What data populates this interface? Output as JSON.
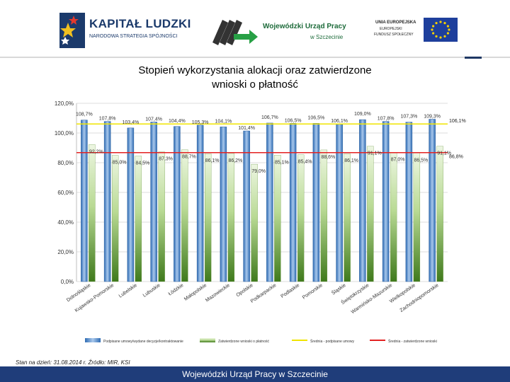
{
  "header": {
    "logos": [
      {
        "title": "KAPITAŁ LUDZKI",
        "subtitle": "NARODOWA STRATEGIA SPÓJNOŚCI"
      },
      {
        "name": "Wojewódzki Urząd Pracy",
        "city": "w Szczecinie"
      },
      {
        "line1": "UNIA EUROPEJSKA",
        "line2": "EUROPEJSKI",
        "line3": "FUNDUSZ SPOŁECZNY"
      }
    ]
  },
  "title_line1": "Stopień wykorzystania alokacji oraz zatwierdzone",
  "title_line2": "wnioski o płatność",
  "chart_data": {
    "type": "bar",
    "categories": [
      "Dolnośląskie",
      "Kujawsko-Pomorskie",
      "Lubelskie",
      "Lubuskie",
      "Łódzkie",
      "Małopolskie",
      "Mazowieckie",
      "Opolskie",
      "Podkarpackie",
      "Podlaskie",
      "Pomorskie",
      "Śląskie",
      "Świętokrzyskie",
      "Warmińsko-Mazurskie",
      "Wielkopolskie",
      "Zachodniopomorskie"
    ],
    "series": [
      {
        "name": "Podpisane umowy/wydane decyzje/kontraktowanie",
        "values": [
          108.7,
          107.8,
          103.4,
          107.4,
          104.4,
          105.3,
          104.1,
          101.4,
          106.7,
          106.5,
          106.5,
          106.1,
          109.0,
          107.8,
          107.3,
          109.3
        ],
        "labels": [
          "108,7%",
          "107,8%",
          "103,4%",
          "107,4%",
          "104,4%",
          "105,3%",
          "104,1%",
          "101,4%",
          "106,7%",
          "106,5%",
          "106,5%",
          "106,1%",
          "109,0%",
          "107,8%",
          "107,3%",
          "109,3%"
        ]
      },
      {
        "name": "Zatwierdzone wnioski o płatność",
        "values": [
          92.2,
          85.0,
          84.5,
          87.3,
          88.7,
          86.1,
          86.2,
          79.0,
          85.1,
          85.4,
          88.6,
          86.1,
          91.1,
          87.0,
          86.5,
          91.1
        ],
        "labels": [
          "92,2%",
          "85,0%",
          "84,5%",
          "87,3%",
          "88,7%",
          "86,1%",
          "86,2%",
          "79,0%",
          "85,1%",
          "85,4%",
          "88,6%",
          "86,1%",
          "91,1%",
          "87,0%",
          "86,5%",
          "91,1%"
        ]
      }
    ],
    "lines": [
      {
        "name": "Średnia - podpisane umowy",
        "value": 106.1,
        "label": "106,1%",
        "color": "#f0e400"
      },
      {
        "name": "Średnia - zatwierdzone wnioski",
        "value": 86.8,
        "label": "86,8%",
        "color": "#e32222"
      }
    ],
    "yticks": [
      0,
      20,
      40,
      60,
      80,
      100,
      120
    ],
    "ytick_labels": [
      "0,0%",
      "20,0%",
      "40,0%",
      "60,0%",
      "80,0%",
      "100,0%",
      "120,0%"
    ],
    "ylim": [
      0,
      120
    ],
    "legend": [
      "Podpisane umowy/wydane decyzje/kontraktowanie",
      "Zatwierdzone wnioski o płatność",
      "Średnia - podpisane umowy",
      "Średnia - zatwierdzone wnioski"
    ],
    "legend_position": "bottom",
    "colors": {
      "blue_bar": "#4f87c6",
      "green_bar": "#77a945",
      "grid": "#d0d0d0"
    }
  },
  "source_text": "Stan na dzień: 31.08.2014 r. Źródło: MIR, KSI",
  "footer_text": "Wojewódzki Urząd Pracy w Szczecinie"
}
